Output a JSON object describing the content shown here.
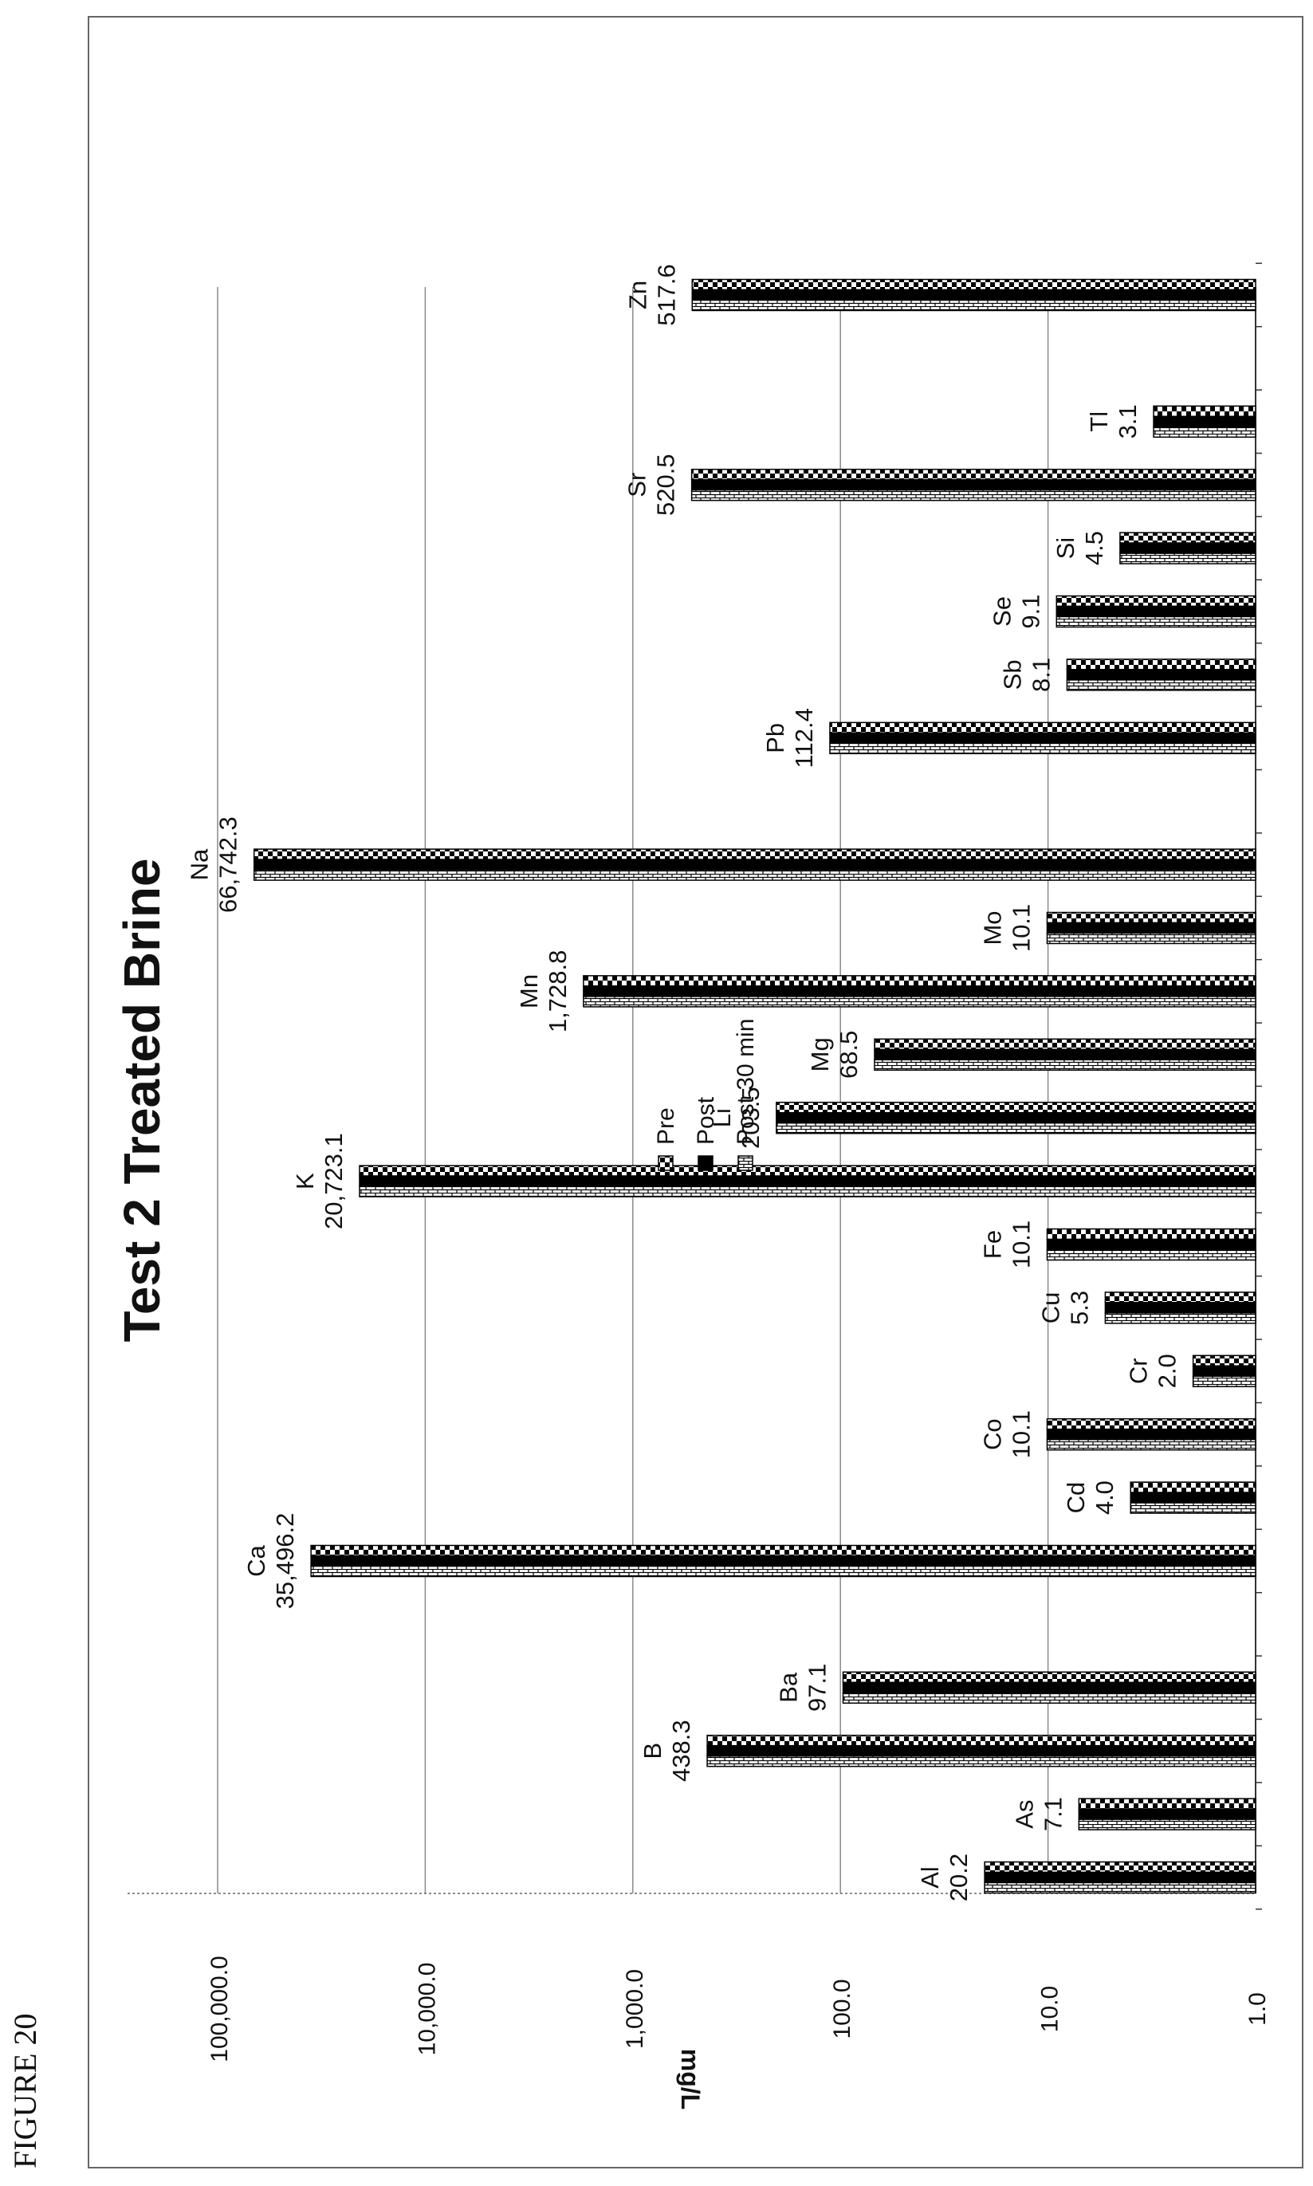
{
  "figure_label": "FIGURE 20",
  "chart_data": {
    "type": "bar",
    "title": "Test  2 Treated Brine",
    "ylabel": "mg/L",
    "xlabel": "",
    "yscale": "log",
    "ylim": [
      1,
      100000
    ],
    "yticks": [
      "1.0",
      "10.0",
      "100.0",
      "1,000.0",
      "10,000.0",
      "100,000.0"
    ],
    "grid": true,
    "legend_position": "right",
    "orientation": "rotated-90-counterclockwise",
    "series": [
      {
        "name": "Pre",
        "pattern": "checker"
      },
      {
        "name": "Post",
        "pattern": "solid"
      },
      {
        "name": "Post 30 min",
        "pattern": "brick"
      }
    ],
    "categories": [
      {
        "element": "Al",
        "value": 20.2,
        "value_label": "20.2"
      },
      {
        "element": "As",
        "value": 7.1,
        "value_label": "7.1"
      },
      {
        "element": "B",
        "value": 438.3,
        "value_label": "438.3"
      },
      {
        "element": "Ba",
        "value": 97.1,
        "value_label": "97.1"
      },
      {
        "element": "",
        "value": null,
        "value_label": ""
      },
      {
        "element": "Ca",
        "value": 35496.2,
        "value_label": "35,496.2"
      },
      {
        "element": "Cd",
        "value": 4.0,
        "value_label": "4.0"
      },
      {
        "element": "Co",
        "value": 10.1,
        "value_label": "10.1"
      },
      {
        "element": "Cr",
        "value": 2.0,
        "value_label": "2.0"
      },
      {
        "element": "Cu",
        "value": 5.3,
        "value_label": "5.3"
      },
      {
        "element": "Fe",
        "value": 10.1,
        "value_label": "10.1"
      },
      {
        "element": "K",
        "value": 20723.1,
        "value_label": "20,723.1"
      },
      {
        "element": "Li",
        "value": 203.5,
        "value_label": "203.5"
      },
      {
        "element": "Mg",
        "value": 68.5,
        "value_label": "68.5"
      },
      {
        "element": "Mn",
        "value": 1728.8,
        "value_label": "1,728.8"
      },
      {
        "element": "Mo",
        "value": 10.1,
        "value_label": "10.1"
      },
      {
        "element": "Na",
        "value": 66742.3,
        "value_label": "66,742.3"
      },
      {
        "element": "",
        "value": null,
        "value_label": ""
      },
      {
        "element": "Pb",
        "value": 112.4,
        "value_label": "112.4"
      },
      {
        "element": "Sb",
        "value": 8.1,
        "value_label": "8.1"
      },
      {
        "element": "Se",
        "value": 9.1,
        "value_label": "9.1"
      },
      {
        "element": "Si",
        "value": 4.5,
        "value_label": "4.5"
      },
      {
        "element": "Sr",
        "value": 520.5,
        "value_label": "520.5"
      },
      {
        "element": "Tl",
        "value": 3.1,
        "value_label": "3.1"
      },
      {
        "element": "",
        "value": null,
        "value_label": ""
      },
      {
        "element": "Zn",
        "value": 517.6,
        "value_label": "517.6"
      }
    ]
  }
}
